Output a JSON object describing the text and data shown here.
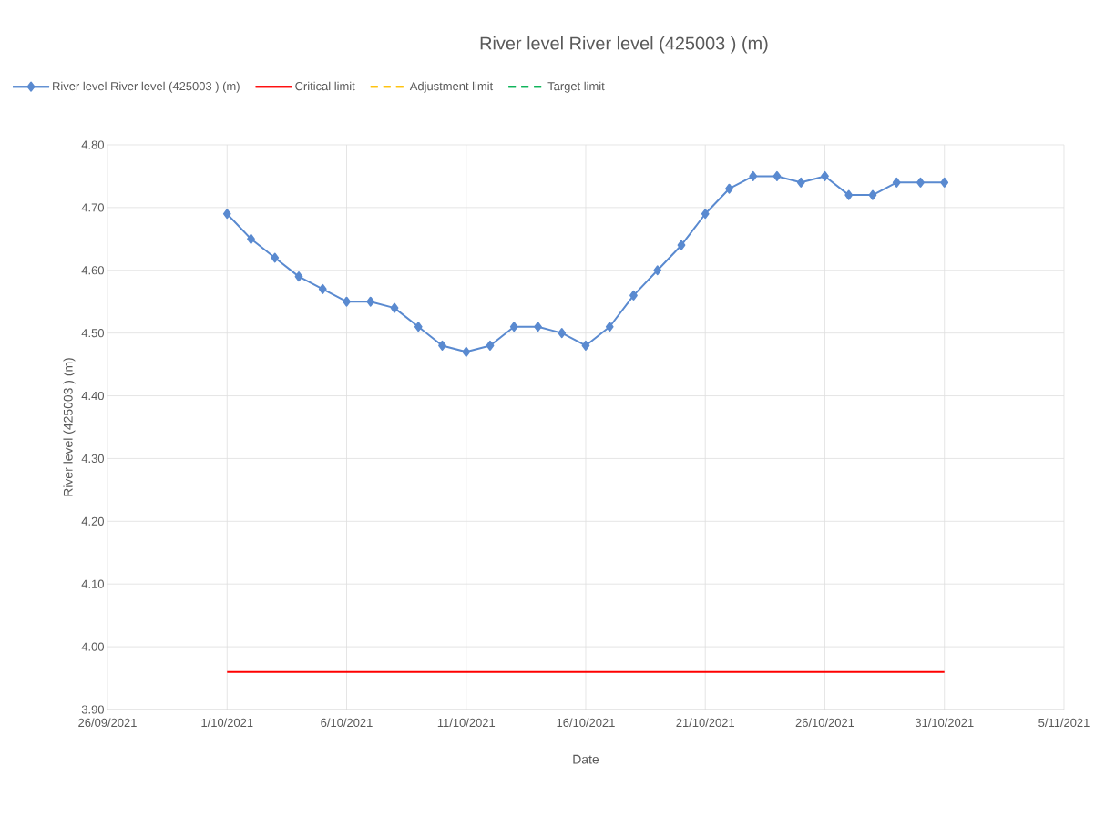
{
  "chart_data": {
    "type": "line",
    "title": "River level River level (425003 ) (m)",
    "xlabel": "Date",
    "ylabel": "River level (425003 ) (m)",
    "x": [
      "2021-10-01",
      "2021-10-02",
      "2021-10-03",
      "2021-10-04",
      "2021-10-05",
      "2021-10-06",
      "2021-10-07",
      "2021-10-08",
      "2021-10-09",
      "2021-10-10",
      "2021-10-11",
      "2021-10-12",
      "2021-10-13",
      "2021-10-14",
      "2021-10-15",
      "2021-10-16",
      "2021-10-17",
      "2021-10-18",
      "2021-10-19",
      "2021-10-20",
      "2021-10-21",
      "2021-10-22",
      "2021-10-23",
      "2021-10-24",
      "2021-10-25",
      "2021-10-26",
      "2021-10-27",
      "2021-10-28",
      "2021-10-29",
      "2021-10-30",
      "2021-10-31"
    ],
    "series": [
      {
        "name": "River level River level (425003 ) (m)",
        "color": "#5a8ad0",
        "marker": "diamond",
        "line_style": "solid",
        "values": [
          4.69,
          4.65,
          4.62,
          4.59,
          4.57,
          4.55,
          4.55,
          4.54,
          4.51,
          4.48,
          4.47,
          4.48,
          4.51,
          4.51,
          4.5,
          4.48,
          4.51,
          4.56,
          4.6,
          4.64,
          4.69,
          4.73,
          4.75,
          4.75,
          4.74,
          4.75,
          4.72,
          4.72,
          4.74,
          4.74,
          4.74
        ]
      },
      {
        "name": "Critical limit",
        "color": "#ff0000",
        "marker": "none",
        "line_style": "solid",
        "x": [
          "2021-10-01",
          "2021-10-31"
        ],
        "values": [
          3.96,
          3.96
        ]
      },
      {
        "name": "Adjustment limit",
        "color": "#ffc000",
        "marker": "none",
        "line_style": "dashed",
        "values": [
          null,
          null,
          null,
          null,
          null,
          null,
          null,
          null,
          null,
          null,
          null,
          null,
          null,
          null,
          null,
          null,
          null,
          null,
          null,
          null,
          null,
          null,
          null,
          null,
          null,
          null,
          null,
          null,
          null,
          null,
          null
        ]
      },
      {
        "name": "Target limit",
        "color": "#00b050",
        "marker": "none",
        "line_style": "dashed",
        "values": [
          null,
          null,
          null,
          null,
          null,
          null,
          null,
          null,
          null,
          null,
          null,
          null,
          null,
          null,
          null,
          null,
          null,
          null,
          null,
          null,
          null,
          null,
          null,
          null,
          null,
          null,
          null,
          null,
          null,
          null,
          null
        ]
      }
    ],
    "xlim": [
      "2021-09-26",
      "2021-11-05"
    ],
    "xticks": [
      {
        "value": "2021-09-26",
        "label": "26/09/2021"
      },
      {
        "value": "2021-10-01",
        "label": "1/10/2021"
      },
      {
        "value": "2021-10-06",
        "label": "6/10/2021"
      },
      {
        "value": "2021-10-11",
        "label": "11/10/2021"
      },
      {
        "value": "2021-10-16",
        "label": "16/10/2021"
      },
      {
        "value": "2021-10-21",
        "label": "21/10/2021"
      },
      {
        "value": "2021-10-26",
        "label": "26/10/2021"
      },
      {
        "value": "2021-10-31",
        "label": "31/10/2021"
      },
      {
        "value": "2021-11-05",
        "label": "5/11/2021"
      }
    ],
    "ylim": [
      3.9,
      4.8
    ],
    "yticks": [
      {
        "value": 3.9,
        "label": "3.90"
      },
      {
        "value": 4.0,
        "label": "4.00"
      },
      {
        "value": 4.1,
        "label": "4.10"
      },
      {
        "value": 4.2,
        "label": "4.20"
      },
      {
        "value": 4.3,
        "label": "4.30"
      },
      {
        "value": 4.4,
        "label": "4.40"
      },
      {
        "value": 4.5,
        "label": "4.50"
      },
      {
        "value": 4.6,
        "label": "4.60"
      },
      {
        "value": 4.7,
        "label": "4.70"
      },
      {
        "value": 4.8,
        "label": "4.80"
      }
    ],
    "grid": true,
    "legend": "top"
  }
}
